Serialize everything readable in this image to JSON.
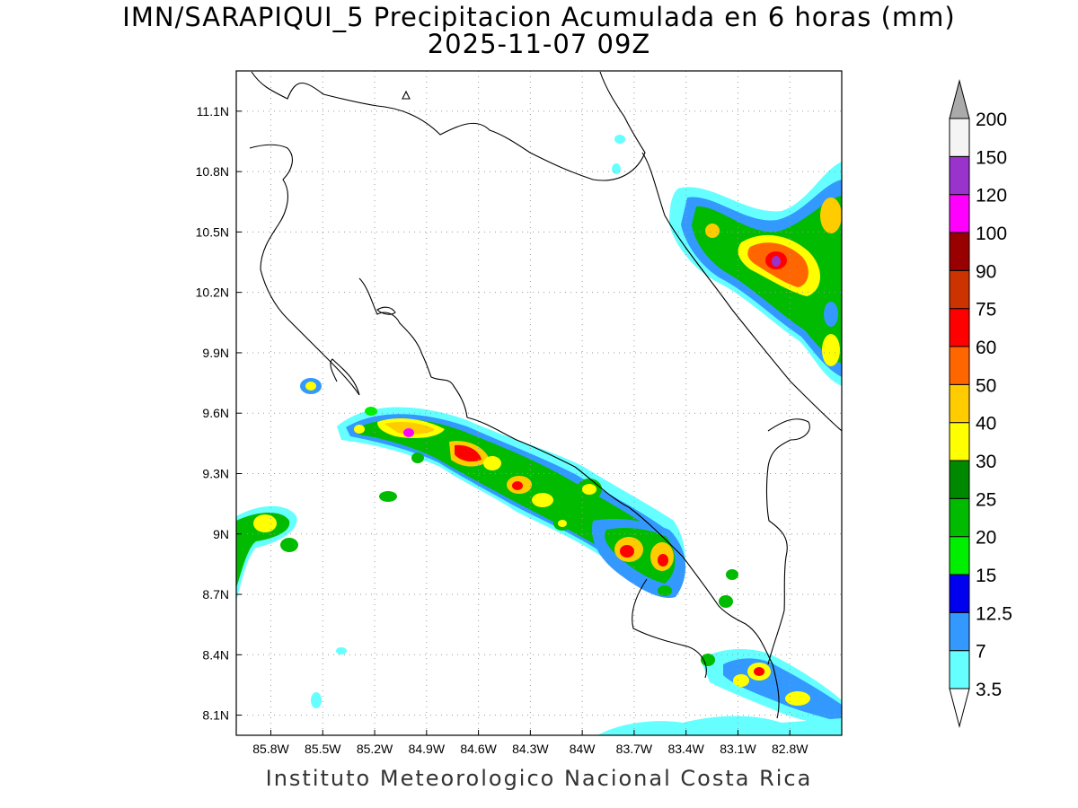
{
  "title_line1": "IMN/SARAPIQUI_5 Precipitacion Acumulada en 6 horas (mm)",
  "title_line2": "2025-11-07 09Z",
  "credit": "Instituto Meteorologico Nacional Costa Rica",
  "longitude_labels": [
    "85.8W",
    "85.5W",
    "85.2W",
    "84.9W",
    "84.6W",
    "84.3W",
    "84W",
    "83.7W",
    "83.4W",
    "83.1W",
    "82.8W"
  ],
  "latitude_labels": [
    "11.1N",
    "10.8N",
    "10.5N",
    "10.2N",
    "9.9N",
    "9.6N",
    "9.3N",
    "9N",
    "8.7N",
    "8.4N",
    "8.1N"
  ],
  "colorbar": {
    "levels": [
      "3.5",
      "7",
      "12.5",
      "15",
      "20",
      "25",
      "30",
      "40",
      "50",
      "60",
      "75",
      "90",
      "100",
      "120",
      "150",
      "200"
    ],
    "colors": [
      "#ffffff",
      "#66ffff",
      "#3399ff",
      "#0000ee",
      "#00ee00",
      "#00bb00",
      "#008800",
      "#ffff00",
      "#ffcc00",
      "#ff6600",
      "#ff0000",
      "#cc3300",
      "#990000",
      "#ff00ff",
      "#9933cc",
      "#f4f4f4",
      "#aaaaaa"
    ]
  },
  "map": {
    "lon_range": [
      -86.0,
      -82.5
    ],
    "lat_range": [
      8.0,
      11.3
    ],
    "region": "Costa Rica"
  }
}
